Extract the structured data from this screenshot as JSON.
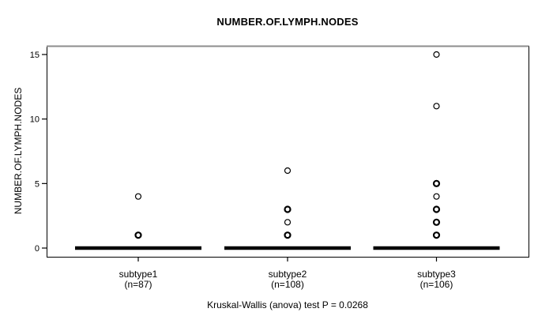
{
  "chart_data": {
    "type": "scatter",
    "variant": "condensed-boxplot-with-outliers",
    "title": "NUMBER.OF.LYMPH.NODES",
    "ylabel": "NUMBER.OF.LYMPH.NODES",
    "xlabel": "",
    "ylim": [
      0,
      15
    ],
    "yticks": [
      0,
      5,
      10,
      15
    ],
    "grid": false,
    "legend": "none",
    "categories": [
      "subtype1",
      "subtype2",
      "subtype3"
    ],
    "category_counts": [
      "(n=87)",
      "(n=108)",
      "(n=106)"
    ],
    "medians": [
      0,
      0,
      0
    ],
    "series": [
      {
        "name": "subtype1",
        "median": 0,
        "outliers": [
          1,
          4
        ],
        "bold_outliers": [
          1
        ]
      },
      {
        "name": "subtype2",
        "median": 0,
        "outliers": [
          1,
          2,
          3,
          6
        ],
        "bold_outliers": [
          1,
          3
        ]
      },
      {
        "name": "subtype3",
        "median": 0,
        "outliers": [
          1,
          2,
          3,
          4,
          5,
          11,
          15
        ],
        "bold_outliers": [
          1,
          2,
          3,
          5
        ]
      }
    ],
    "caption": "Kruskal-Wallis (anova) test P = 0.0268",
    "colors": {
      "foreground": "#000000",
      "background": "#ffffff",
      "border_top": "#8c8c8c"
    }
  }
}
